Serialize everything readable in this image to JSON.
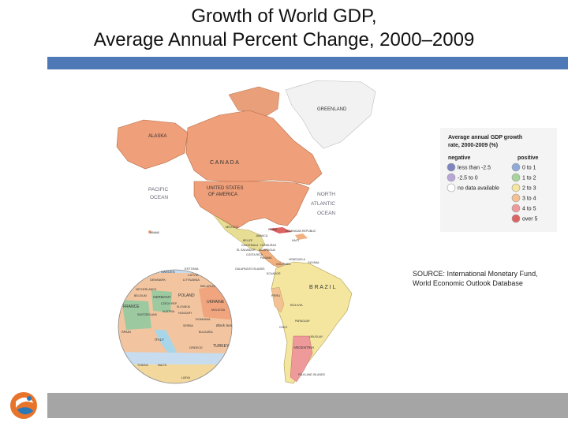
{
  "slide": {
    "title_line1": "Growth of World GDP,",
    "title_line2": "Average Annual Percent Change, 2000–2009",
    "source_line1": "SOURCE: International Monetary Fund,",
    "source_line2": "World Economic Outlook Database"
  },
  "legend": {
    "title_line1": "Average annual GDP growth",
    "title_line2": "rate, 2000-2009 (%)",
    "negative_header": "negative",
    "positive_header": "positive",
    "items": [
      {
        "label": "less than -2.5",
        "color": "#7d84c0"
      },
      {
        "label": "-2.5 to 0",
        "color": "#b7a6d6"
      },
      {
        "label": "no data available",
        "color": "#ffffff"
      },
      {
        "label": "0 to 1",
        "color": "#8fa9d8"
      },
      {
        "label": "1 to 2",
        "color": "#a7d49a"
      },
      {
        "label": "2 to 3",
        "color": "#f4e6a0"
      },
      {
        "label": "3 to 4",
        "color": "#f3c193"
      },
      {
        "label": "4 to 5",
        "color": "#ef9a9a"
      },
      {
        "label": "over 5",
        "color": "#dd6363"
      }
    ]
  },
  "map_labels": {
    "greenland": "GREENLAND",
    "alaska": "ALASKA",
    "canada": "C A N A D A",
    "usa_1": "UNITED STATES",
    "usa_2": "OF AMERICA",
    "pacific_1": "PACIFIC",
    "pacific_2": "OCEAN",
    "atlantic_1": "NORTH",
    "atlantic_2": "ATLANTIC",
    "atlantic_3": "OCEAN",
    "mexico": "MEXICO",
    "cuba": "CUBA",
    "jamaica": "JAMAICA",
    "belize": "BELIZE",
    "haiti": "HAITI",
    "dominican": "DOMINICAN REPUBLIC",
    "guatemala": "GUATEMALA",
    "honduras": "HONDURAS",
    "el_salvador": "EL SALVADOR",
    "nicaragua": "NICARAGUA",
    "costa_rica": "COSTA RICA",
    "panama": "PANAMA",
    "venezuela": "VENEZUELA",
    "guyana": "GUYANA",
    "colombia": "COLOMBIA",
    "ecuador": "ECUADOR",
    "galapagos": "GALAPAGOS ISLANDS",
    "peru": "PERU",
    "brazil": "B R A Z I L",
    "bolivia": "BOLIVIA",
    "paraguay": "PARAGUAY",
    "chile": "CHILE",
    "uruguay": "URUGUAY",
    "argentina": "ARGENTINA",
    "falklands": "FALKLAND ISLANDS",
    "hawaii": "HAWAII",
    "sweden": "SWEDEN",
    "estonia": "ESTONIA",
    "latvia": "LATVIA",
    "denmark": "DENMARK",
    "lithuania": "LITHUANIA",
    "belarus": "BELARUS",
    "netherlands": "NETHERLANDS",
    "belgium": "BELGIUM",
    "germany": "GERMANY",
    "poland": "POLAND",
    "france": "FRANCE",
    "czech": "CZECH REP.",
    "slovakia": "SLOVAKIA",
    "ukraine": "UKRAINE",
    "moldova": "MOLDOVA",
    "austria": "AUSTRIA",
    "hungary": "HUNGARY",
    "romania": "ROMANIA",
    "switzerland": "SWITZERLAND",
    "serbia": "SERBIA",
    "bulgaria": "BULGARIA",
    "black_sea": "Black Sea",
    "italy": "ITALY",
    "greece": "GREECE",
    "turkey": "TURKEY",
    "spain": "SPAIN",
    "tunisia": "TUNISIA",
    "malta": "MALTA",
    "libya": "LIBYA"
  },
  "colors": {
    "title_bar": "#4f79b6",
    "bottom_bar": "#a5a5a5",
    "ocean": "#ffffff"
  }
}
